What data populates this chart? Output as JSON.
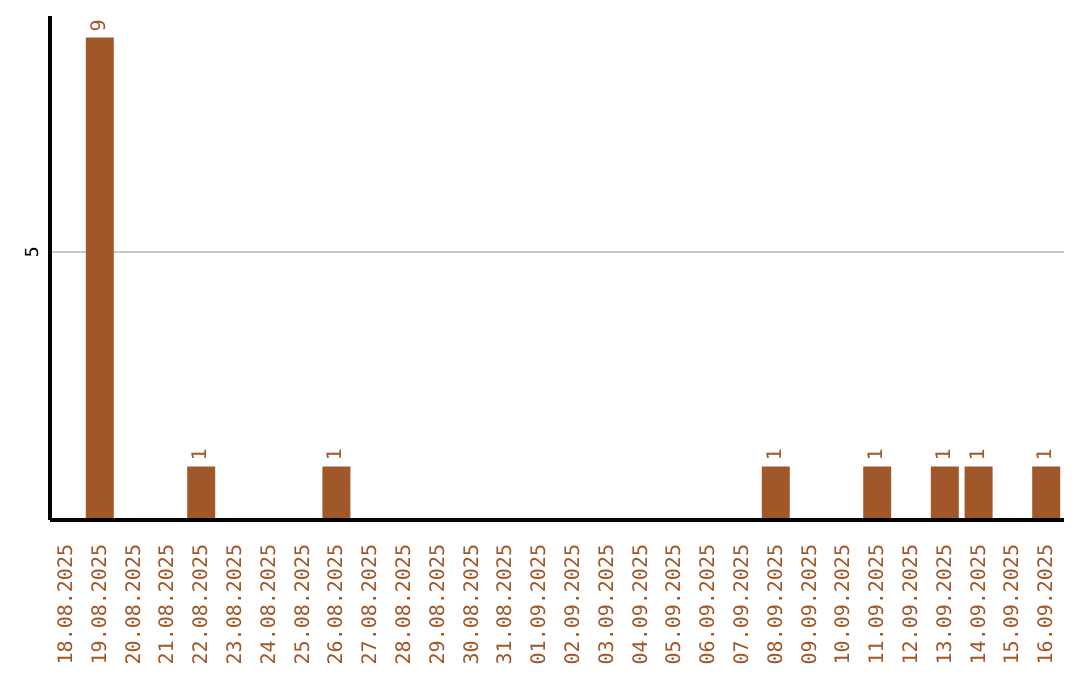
{
  "chart_data": {
    "type": "bar",
    "categories": [
      "18.08.2025",
      "19.08.2025",
      "20.08.2025",
      "21.08.2025",
      "22.08.2025",
      "23.08.2025",
      "24.08.2025",
      "25.08.2025",
      "26.08.2025",
      "27.08.2025",
      "28.08.2025",
      "29.08.2025",
      "30.08.2025",
      "31.08.2025",
      "01.09.2025",
      "02.09.2025",
      "03.09.2025",
      "04.09.2025",
      "05.09.2025",
      "06.09.2025",
      "07.09.2025",
      "08.09.2025",
      "09.09.2025",
      "10.09.2025",
      "11.09.2025",
      "12.09.2025",
      "13.09.2025",
      "14.09.2025",
      "15.09.2025",
      "16.09.2025"
    ],
    "values": [
      0,
      9,
      0,
      0,
      1,
      0,
      0,
      0,
      1,
      0,
      0,
      0,
      0,
      0,
      0,
      0,
      0,
      0,
      0,
      0,
      0,
      1,
      0,
      0,
      1,
      0,
      1,
      1,
      0,
      1
    ],
    "value_labels": [
      null,
      "9",
      null,
      null,
      "1",
      null,
      null,
      null,
      "1",
      null,
      null,
      null,
      null,
      null,
      null,
      null,
      null,
      null,
      null,
      null,
      null,
      "1",
      null,
      null,
      "1",
      null,
      "1",
      "1",
      null,
      "1"
    ],
    "color": "#a0572a",
    "ylim": [
      0,
      9.4
    ],
    "yticks": [
      5
    ],
    "grid": "y"
  }
}
